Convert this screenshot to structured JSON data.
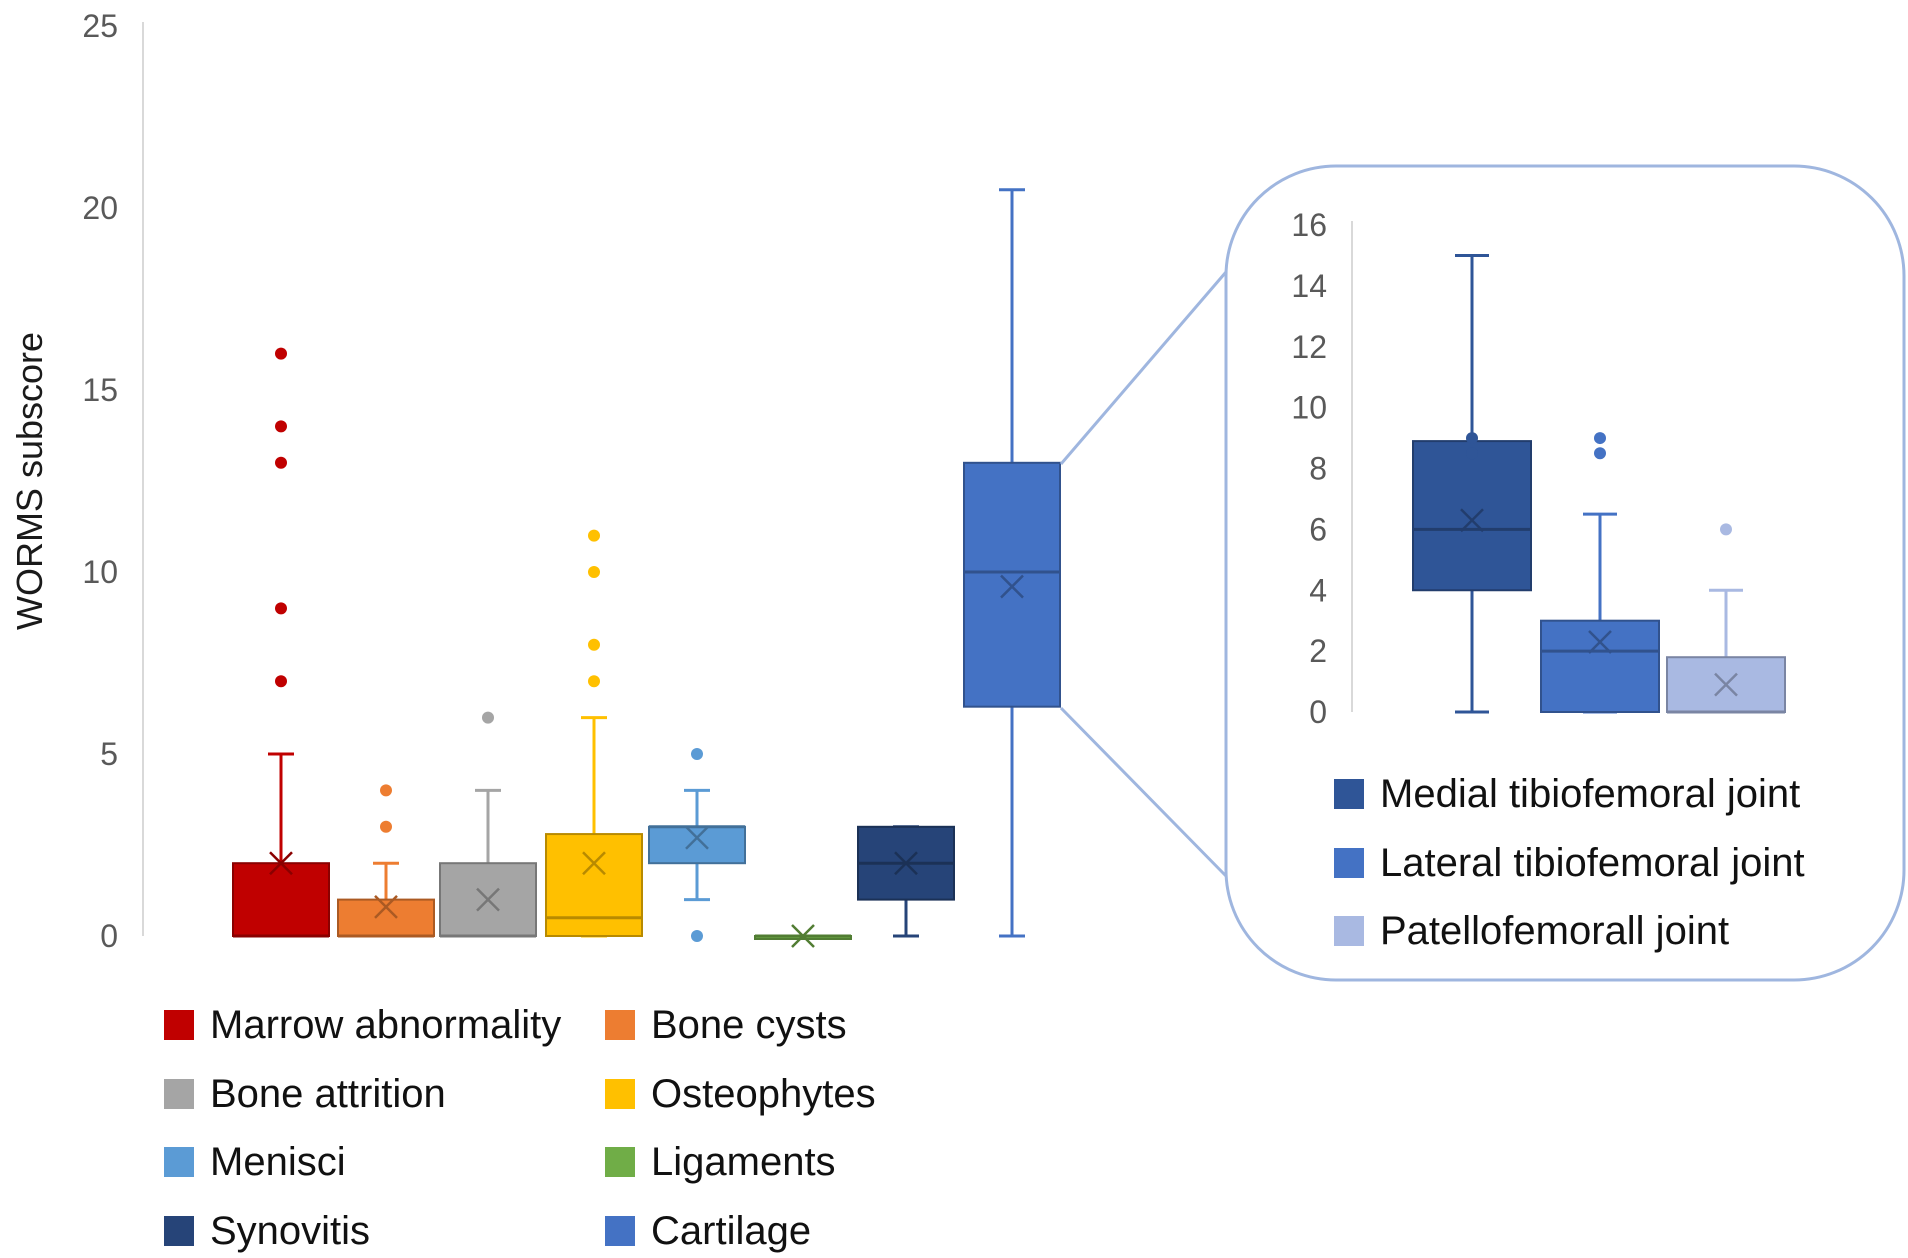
{
  "chart_data": [
    {
      "type": "box",
      "ylabel": "WORMS subscore",
      "ylim": [
        0,
        25
      ],
      "yticks": [
        0,
        5,
        10,
        15,
        20,
        25
      ],
      "grid": false,
      "legend_position": "bottom",
      "series": [
        {
          "name": "Marrow abnormality",
          "color": "#c00000",
          "min": 0,
          "q1": 0,
          "median": 0,
          "q3": 2,
          "max": 5,
          "mean": 2,
          "outliers": [
            7,
            9,
            13,
            14,
            16
          ]
        },
        {
          "name": "Bone cysts",
          "color": "#ed7d31",
          "min": 0,
          "q1": 0,
          "median": 0,
          "q3": 1,
          "max": 2,
          "mean": 0.8,
          "outliers": [
            3,
            4
          ]
        },
        {
          "name": "Bone attrition",
          "color": "#a5a5a5",
          "min": 0,
          "q1": 0,
          "median": 0,
          "q3": 2,
          "max": 4,
          "mean": 1,
          "outliers": [
            6
          ]
        },
        {
          "name": "Osteophytes",
          "color": "#ffc000",
          "min": 0,
          "q1": 0,
          "median": 0.5,
          "q3": 2.8,
          "max": 6,
          "mean": 2,
          "outliers": [
            7,
            8,
            10,
            11
          ]
        },
        {
          "name": "Menisci",
          "color": "#5b9bd5",
          "min": 1,
          "q1": 2,
          "median": 3,
          "q3": 3,
          "max": 4,
          "mean": 2.7,
          "outliers": [
            0,
            5
          ]
        },
        {
          "name": "Ligaments",
          "color": "#70ad47",
          "min": 0,
          "q1": 0,
          "median": 0,
          "q3": 0,
          "max": 0,
          "mean": 0,
          "outliers": []
        },
        {
          "name": "Synovitis",
          "color": "#264478",
          "min": 0,
          "q1": 1,
          "median": 2,
          "q3": 3,
          "max": 3,
          "mean": 2,
          "outliers": []
        },
        {
          "name": "Cartilage",
          "color": "#4472c4",
          "min": 0,
          "q1": 6.3,
          "median": 10,
          "q3": 13,
          "max": 20.5,
          "mean": 9.6,
          "outliers": []
        }
      ]
    },
    {
      "type": "box",
      "ylim": [
        0,
        16
      ],
      "yticks": [
        0,
        2,
        4,
        6,
        8,
        10,
        12,
        14,
        16
      ],
      "grid": false,
      "legend_position": "bottom",
      "series": [
        {
          "name": "Medial tibiofemoral joint",
          "color": "#2f5597",
          "min": 0,
          "q1": 4,
          "median": 6,
          "q3": 8.9,
          "max": 15,
          "mean": 6.3,
          "outliers": [
            8.5,
            9
          ]
        },
        {
          "name": "Lateral tibiofemoral joint",
          "color": "#4472c4",
          "min": 0,
          "q1": 0,
          "median": 2,
          "q3": 3,
          "max": 6.5,
          "mean": 2.3,
          "outliers": [
            8.5,
            9
          ]
        },
        {
          "name": "Patellofemorall joint",
          "color": "#a9b9e2",
          "min": 0,
          "q1": 0,
          "median": 0,
          "q3": 1.8,
          "max": 4,
          "mean": 0.9,
          "outliers": [
            6
          ]
        }
      ]
    }
  ]
}
